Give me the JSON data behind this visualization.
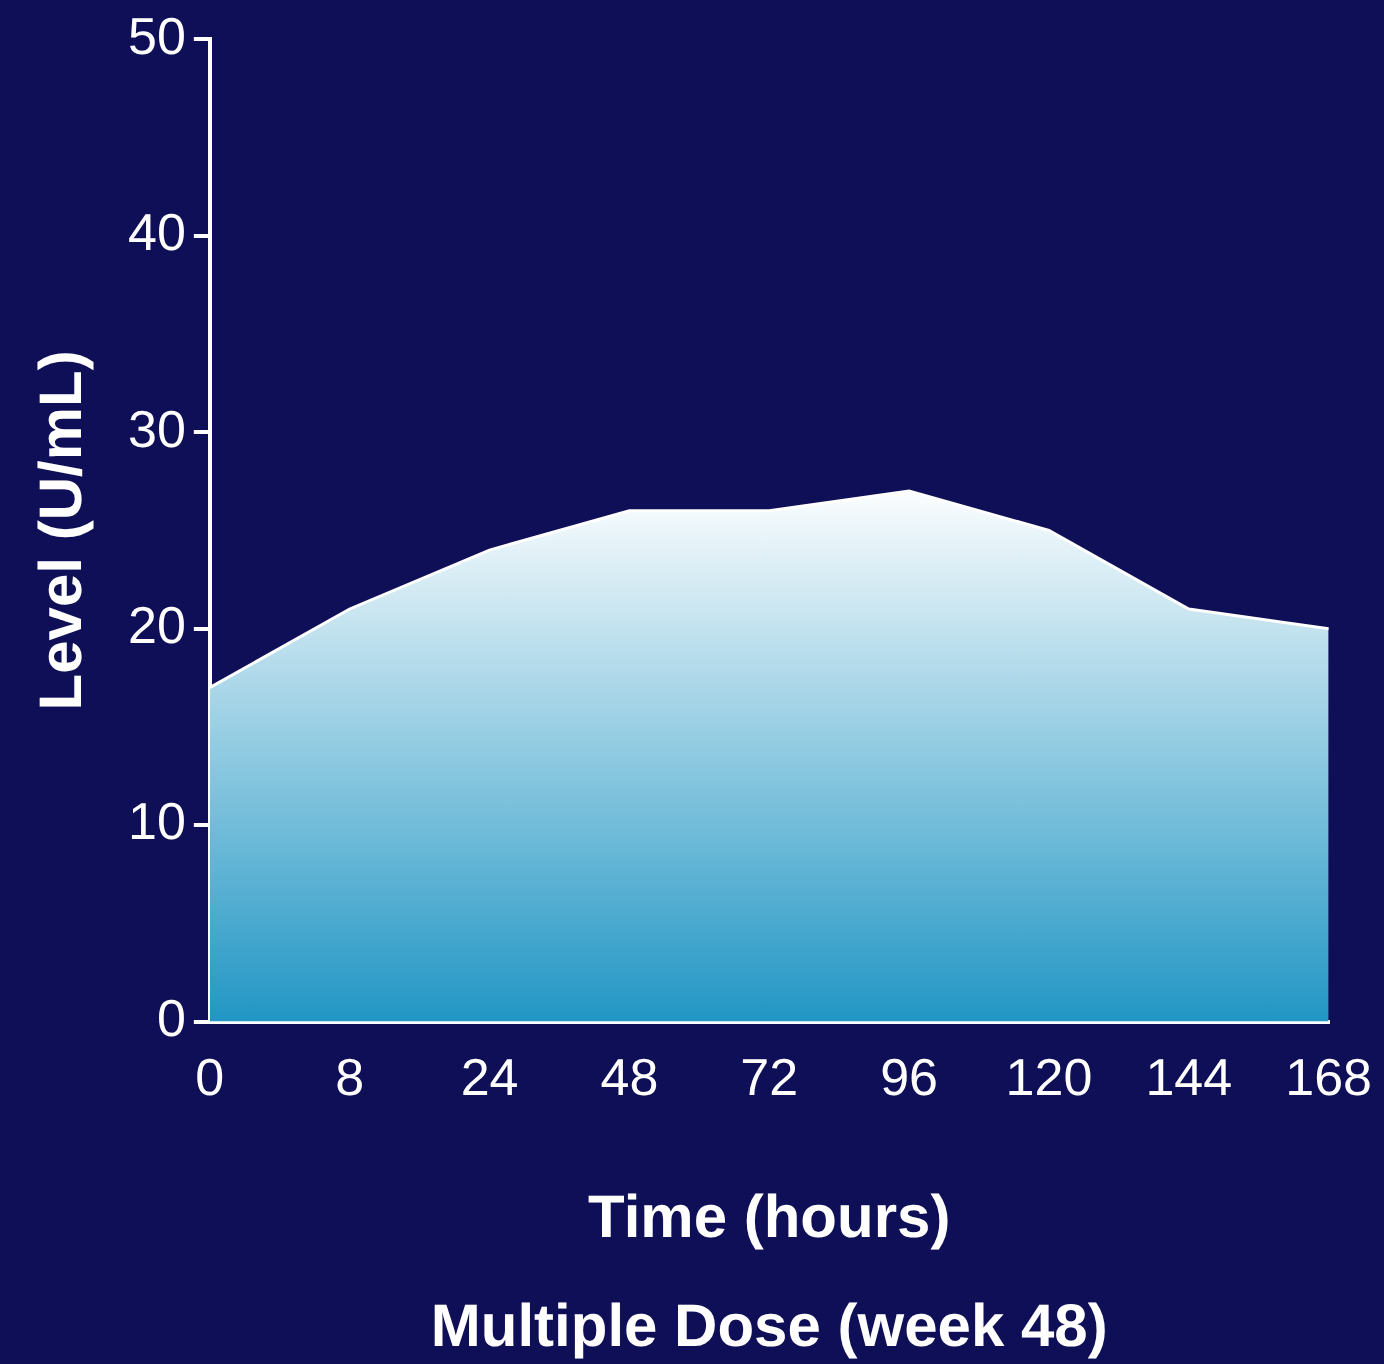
{
  "chart_data": {
    "type": "area",
    "xlabel": "Time (hours)",
    "ylabel": "Level (U/mL)",
    "annotations": [
      "Multiple Dose (week 48)"
    ],
    "categories": [
      "0",
      "8",
      "24",
      "48",
      "72",
      "96",
      "120",
      "144",
      "168"
    ],
    "series": [
      {
        "color": "#2196c4",
        "values": [
          17,
          21,
          24,
          26,
          26,
          27,
          25,
          21,
          20
        ]
      }
    ],
    "ylim": [
      0,
      50
    ],
    "yticks": [
      0,
      10,
      20,
      30,
      40,
      50
    ],
    "grid": false,
    "legend": false
  }
}
